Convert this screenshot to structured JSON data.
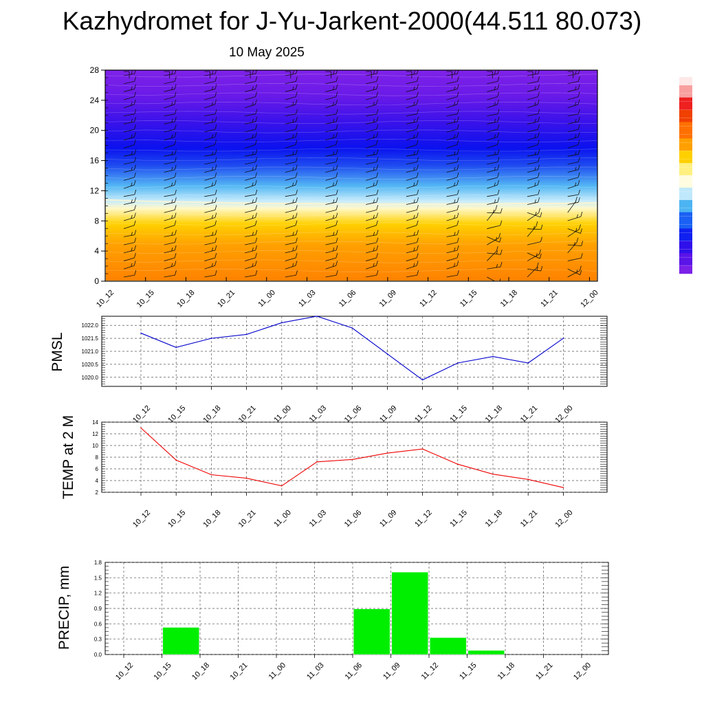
{
  "header": {
    "title": "Kazhydromet for J-Yu-Jarkent-2000(44.511 80.073)",
    "date": "10 May 2025"
  },
  "time_labels": [
    "10_12",
    "10_15",
    "10_18",
    "10_21",
    "11_00",
    "11_03",
    "11_06",
    "11_09",
    "11_12",
    "11_15",
    "11_18",
    "11_21",
    "12_00"
  ],
  "chart_data": [
    {
      "type": "heatmap",
      "title": "",
      "ylabel": "",
      "ylim": [
        0,
        28
      ],
      "y_ticks": [
        0,
        4,
        8,
        12,
        16,
        20,
        24,
        28
      ],
      "categories": [
        "10_12",
        "10_15",
        "10_18",
        "10_21",
        "11_00",
        "11_03",
        "11_06",
        "11_09",
        "11_12",
        "11_15",
        "11_18",
        "11_21",
        "12_00"
      ],
      "colorbar_colors": [
        "#7a1be6",
        "#5a10ea",
        "#2e0cf0",
        "#1030f8",
        "#2a78f5",
        "#4ab0f2",
        "#aee0fa",
        "#fffbe0",
        "#ffe860",
        "#ffd000",
        "#ff9e00",
        "#ff6a00",
        "#ff3000",
        "#ee0000",
        "#f88080",
        "#ffe4e4"
      ],
      "boundary_y": [
        10.8,
        10.6,
        10.5,
        10.4,
        10.3,
        10.3,
        10.2,
        10.2,
        10.2,
        10.2,
        10.3,
        10.3,
        10.4
      ],
      "wind_barbs": true,
      "grid": false
    },
    {
      "type": "line",
      "ylabel": "PMSL",
      "categories": [
        "10_12",
        "10_15",
        "10_18",
        "10_21",
        "11_00",
        "11_03",
        "11_06",
        "11_09",
        "11_12",
        "11_15",
        "11_18",
        "11_21",
        "12_00"
      ],
      "values": [
        1021.7,
        1021.15,
        1021.5,
        1021.65,
        1022.1,
        1022.35,
        1021.9,
        1020.9,
        1019.9,
        1020.55,
        1020.8,
        1020.55,
        1021.5
      ],
      "ylim": [
        1019.65,
        1022.35
      ],
      "y_ticks": [
        1020.0,
        1020.5,
        1021.0,
        1021.5,
        1022.0
      ],
      "y_tick_labels": [
        "1020.0",
        "1020.5",
        "1021.0",
        "1021.5",
        "1022.0"
      ],
      "color": "#0000cc",
      "grid": true
    },
    {
      "type": "line",
      "ylabel": "TEMP at 2 M",
      "categories": [
        "10_12",
        "10_15",
        "10_18",
        "10_21",
        "11_00",
        "11_03",
        "11_06",
        "11_09",
        "11_12",
        "11_15",
        "11_18",
        "11_21",
        "12_00"
      ],
      "values": [
        13.0,
        7.5,
        5.0,
        4.4,
        3.1,
        7.2,
        7.6,
        8.7,
        9.4,
        6.8,
        5.1,
        4.2,
        2.8
      ],
      "ylim": [
        2,
        14
      ],
      "y_ticks": [
        2,
        4,
        6,
        8,
        10,
        12,
        14
      ],
      "y_tick_labels": [
        "2",
        "4",
        "6",
        "8",
        "10",
        "12",
        "14"
      ],
      "color": "#ee0000",
      "grid": true
    },
    {
      "type": "bar",
      "ylabel": "PRECIP, mm",
      "categories": [
        "10_12",
        "10_15",
        "10_18",
        "10_21",
        "11_00",
        "11_03",
        "11_06",
        "11_09",
        "11_12",
        "11_15",
        "11_18",
        "11_21",
        "12_00"
      ],
      "values": [
        0,
        0.53,
        0,
        0,
        0,
        0,
        0.89,
        1.61,
        0.33,
        0.08,
        0,
        0,
        0
      ],
      "ylim": [
        0,
        1.8
      ],
      "y_ticks": [
        0.0,
        0.3,
        0.6,
        0.9,
        1.2,
        1.5,
        1.8
      ],
      "y_tick_labels": [
        "0.0",
        "0.3",
        "0.6",
        "0.9",
        "1.2",
        "1.5",
        "1.8"
      ],
      "color": "#00ee00",
      "grid": true
    }
  ]
}
